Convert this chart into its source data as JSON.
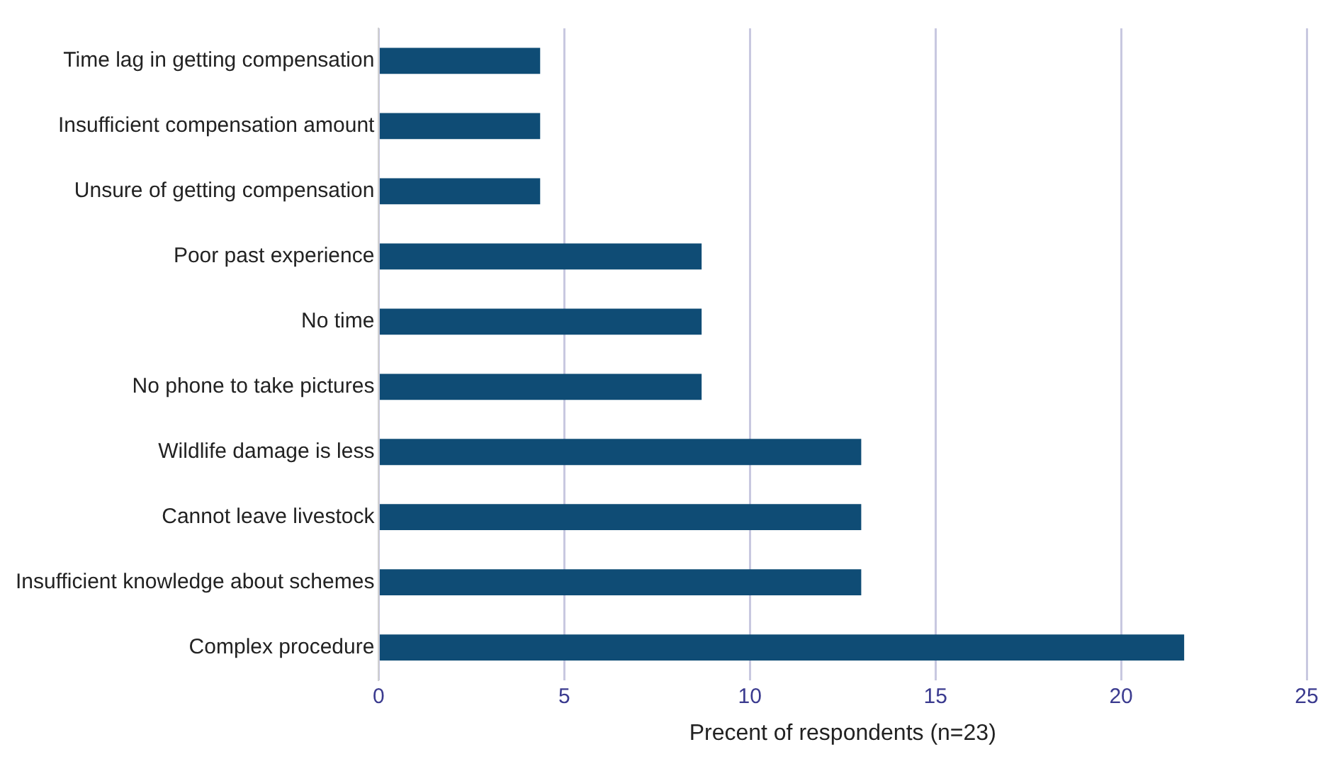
{
  "chart_data": {
    "type": "bar",
    "orientation": "horizontal",
    "xlabel": "Precent of respondents (n=23)",
    "categories": [
      "Time lag in getting compensation",
      "Insufficient compensation amount",
      "Unsure of getting compensation",
      "Poor past experience",
      "No time",
      "No phone to take pictures",
      "Wildlife damage is less",
      "Cannot leave livestock",
      "Insufficient knowledge about schemes",
      "Complex procedure"
    ],
    "values": [
      4.35,
      4.35,
      4.35,
      8.7,
      8.7,
      8.7,
      13.0,
      13.0,
      13.0,
      21.7
    ],
    "color": "#0f4c75",
    "xlim": [
      0,
      25
    ],
    "xticks": [
      0,
      5,
      10,
      15,
      20,
      25
    ],
    "grid": "x",
    "legend": false
  }
}
